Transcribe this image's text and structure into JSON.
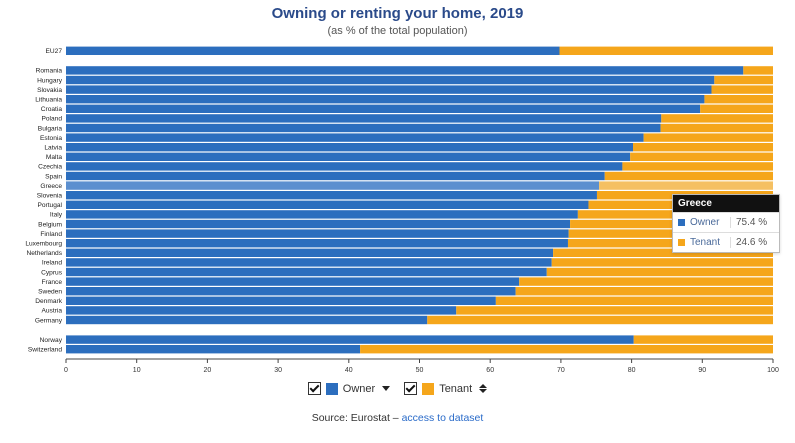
{
  "title": "Owning or renting your home, 2019",
  "subtitle": "(as % of the total population)",
  "colors": {
    "owner": "#2c6ebe",
    "tenant": "#f5a61b",
    "highlight_owner": "#5b8fcf",
    "highlight_tenant": "#f5c062"
  },
  "legend": {
    "owner_label": "Owner",
    "tenant_label": "Tenant"
  },
  "source": {
    "prefix": "Source: Eurostat – ",
    "link": "access to dataset"
  },
  "tooltip": {
    "country": "Greece",
    "owner_label": "Owner",
    "owner_value": "75.4 %",
    "tenant_label": "Tenant",
    "tenant_value": "24.6 %"
  },
  "chart_data": {
    "type": "bar",
    "orientation": "horizontal",
    "stacked": true,
    "xlim": [
      0,
      100
    ],
    "xticks": [
      0,
      10,
      20,
      30,
      40,
      50,
      60,
      70,
      80,
      90,
      100
    ],
    "highlighted": "Greece",
    "groups": [
      {
        "categories": [
          "EU27"
        ],
        "owner": [
          69.8
        ]
      },
      {
        "categories": [
          "Romania",
          "Hungary",
          "Slovakia",
          "Lithuania",
          "Croatia",
          "Poland",
          "Bulgaria",
          "Estonia",
          "Latvia",
          "Malta",
          "Czechia",
          "Spain",
          "Greece",
          "Slovenia",
          "Portugal",
          "Italy",
          "Belgium",
          "Finland",
          "Luxembourg",
          "Netherlands",
          "Ireland",
          "Cyprus",
          "France",
          "Sweden",
          "Denmark",
          "Austria",
          "Germany"
        ],
        "owner": [
          95.8,
          91.7,
          91.3,
          90.3,
          89.7,
          84.2,
          84.1,
          81.7,
          80.2,
          79.8,
          78.7,
          76.2,
          75.4,
          75.1,
          73.9,
          72.4,
          71.3,
          71.1,
          71.0,
          68.9,
          68.7,
          68.0,
          64.1,
          63.6,
          60.8,
          55.2,
          51.1
        ]
      },
      {
        "categories": [
          "Norway",
          "Switzerland"
        ],
        "owner": [
          80.3,
          41.6
        ]
      }
    ],
    "series": [
      {
        "name": "Owner"
      },
      {
        "name": "Tenant"
      }
    ]
  }
}
